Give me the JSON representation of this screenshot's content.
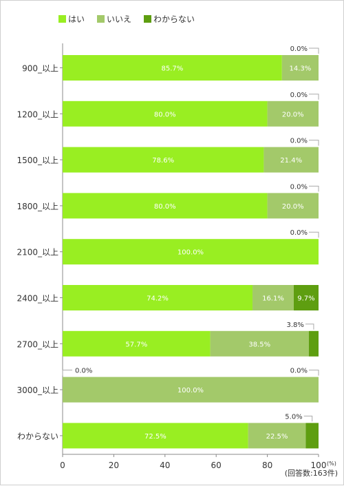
{
  "chart_data": {
    "type": "bar",
    "orientation": "horizontal",
    "stacked": true,
    "categories": [
      "900_以上",
      "1200_以上",
      "1500_以上",
      "1800_以上",
      "2100_以上",
      "2400_以上",
      "2700_以上",
      "3000_以上",
      "わからない"
    ],
    "series": [
      {
        "name": "はい",
        "color": "#99ee22",
        "values": [
          85.7,
          80.0,
          78.6,
          80.0,
          100.0,
          74.2,
          57.7,
          0.0,
          72.5
        ]
      },
      {
        "name": "いいえ",
        "color": "#a3c96a",
        "values": [
          14.3,
          20.0,
          21.4,
          20.0,
          0.0,
          16.1,
          38.5,
          100.0,
          22.5
        ]
      },
      {
        "name": "わからない",
        "color": "#5e9e10",
        "values": [
          0.0,
          0.0,
          0.0,
          0.0,
          0.0,
          9.7,
          3.8,
          0.0,
          5.0
        ]
      }
    ],
    "xlim": [
      0,
      100
    ],
    "xticks": [
      0,
      20,
      40,
      60,
      80,
      100
    ],
    "x_unit_label": "(%)",
    "note": "(回答数:163件)",
    "legend_position": "top-left",
    "grid": false
  }
}
